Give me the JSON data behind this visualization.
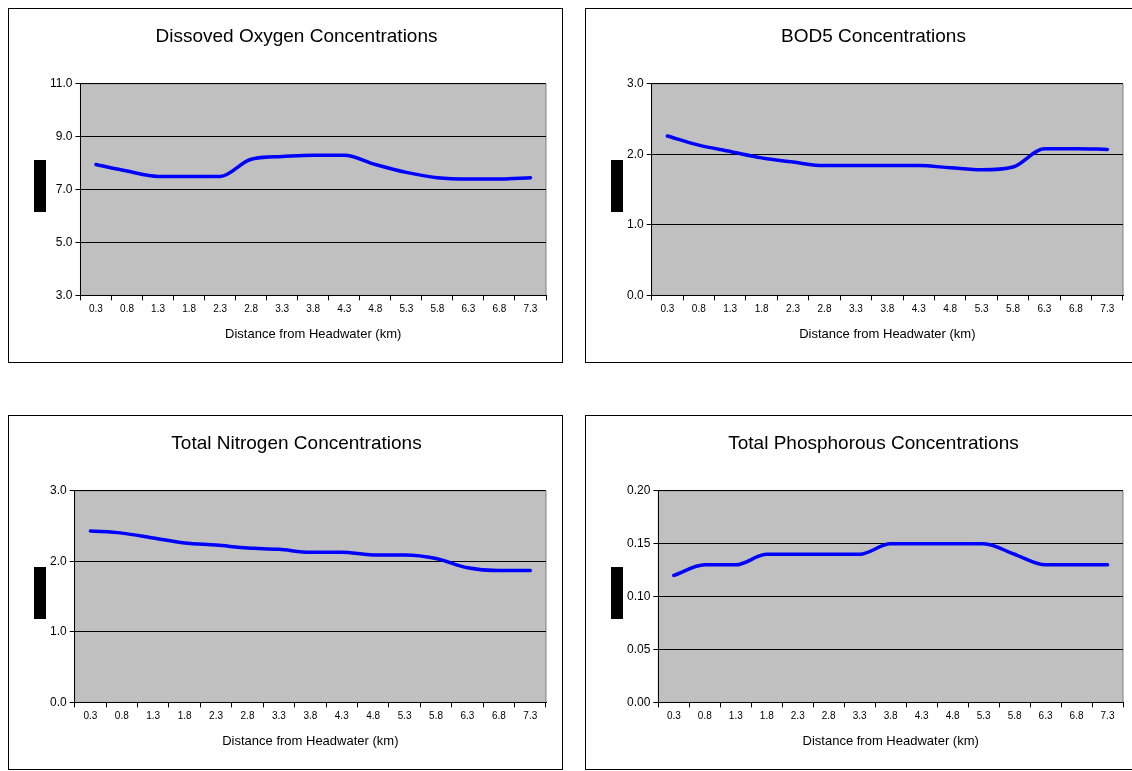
{
  "chart_data": [
    {
      "type": "line",
      "title": "Dissoved Oxygen Concentrations",
      "xlabel": "Distance from Headwater (km)",
      "categories": [
        "0.3",
        "0.8",
        "1.3",
        "1.8",
        "2.3",
        "2.8",
        "3.3",
        "3.8",
        "4.3",
        "4.8",
        "5.3",
        "5.8",
        "6.3",
        "6.8",
        "7.3"
      ],
      "series": [
        {
          "color": "#0000ff",
          "values": [
            7.95,
            7.7,
            7.5,
            7.5,
            7.5,
            8.15,
            8.25,
            8.3,
            8.3,
            7.95,
            7.65,
            7.45,
            7.4,
            7.4,
            7.45
          ]
        }
      ],
      "ylim": [
        3,
        11
      ],
      "yticks": [
        {
          "value": 3,
          "label": "3.0"
        },
        {
          "value": 5,
          "label": "5.0"
        },
        {
          "value": 7,
          "label": "7.0"
        },
        {
          "value": 9,
          "label": "9.0"
        },
        {
          "value": 11,
          "label": "11.0"
        }
      ],
      "grid": "y",
      "legend": false,
      "marker": "none",
      "line_style": "solid"
    },
    {
      "type": "line",
      "title": "BOD5 Concentrations",
      "xlabel": "Distance from Headwater (km)",
      "categories": [
        "0.3",
        "0.8",
        "1.3",
        "1.8",
        "2.3",
        "2.8",
        "3.3",
        "3.8",
        "4.3",
        "4.8",
        "5.3",
        "5.8",
        "6.3",
        "6.8",
        "7.3"
      ],
      "series": [
        {
          "color": "#0000ff",
          "values": [
            2.26,
            2.13,
            2.04,
            1.95,
            1.89,
            1.84,
            1.84,
            1.84,
            1.84,
            1.81,
            1.78,
            1.82,
            2.08,
            2.08,
            2.07
          ]
        }
      ],
      "ylim": [
        0,
        3
      ],
      "yticks": [
        {
          "value": 0,
          "label": "0.0"
        },
        {
          "value": 1,
          "label": "1.0"
        },
        {
          "value": 2,
          "label": "2.0"
        },
        {
          "value": 3,
          "label": "3.0"
        }
      ],
      "grid": "y",
      "legend": false,
      "marker": "none",
      "line_style": "solid"
    },
    {
      "type": "line",
      "title": "Total Nitrogen Concentrations",
      "xlabel": "Distance from Headwater (km)",
      "categories": [
        "0.3",
        "0.8",
        "1.3",
        "1.8",
        "2.3",
        "2.8",
        "3.3",
        "3.8",
        "4.3",
        "4.8",
        "5.3",
        "5.8",
        "6.3",
        "6.8",
        "7.3"
      ],
      "series": [
        {
          "color": "#0000ff",
          "values": [
            2.43,
            2.4,
            2.33,
            2.26,
            2.23,
            2.19,
            2.17,
            2.13,
            2.13,
            2.09,
            2.09,
            2.04,
            1.91,
            1.87,
            1.87
          ]
        }
      ],
      "ylim": [
        0,
        3
      ],
      "yticks": [
        {
          "value": 0,
          "label": "0.0"
        },
        {
          "value": 1,
          "label": "1.0"
        },
        {
          "value": 2,
          "label": "2.0"
        },
        {
          "value": 3,
          "label": "3.0"
        }
      ],
      "grid": "y",
      "legend": false,
      "marker": "none",
      "line_style": "solid"
    },
    {
      "type": "line",
      "title": "Total Phosphorous Concentrations",
      "xlabel": "Distance from Headwater (km)",
      "categories": [
        "0.3",
        "0.8",
        "1.3",
        "1.8",
        "2.3",
        "2.8",
        "3.3",
        "3.8",
        "4.3",
        "4.8",
        "5.3",
        "5.8",
        "6.3",
        "6.8",
        "7.3"
      ],
      "series": [
        {
          "color": "#0000ff",
          "values": [
            0.12,
            0.13,
            0.13,
            0.14,
            0.14,
            0.14,
            0.14,
            0.15,
            0.15,
            0.15,
            0.15,
            0.14,
            0.13,
            0.13,
            0.13
          ]
        }
      ],
      "ylim": [
        0,
        0.2
      ],
      "yticks": [
        {
          "value": 0,
          "label": "0.00"
        },
        {
          "value": 0.05,
          "label": "0.05"
        },
        {
          "value": 0.1,
          "label": "0.10"
        },
        {
          "value": 0.15,
          "label": "0.15"
        },
        {
          "value": 0.2,
          "label": "0.20"
        }
      ],
      "grid": "y",
      "legend": false,
      "marker": "none",
      "line_style": "solid"
    }
  ]
}
